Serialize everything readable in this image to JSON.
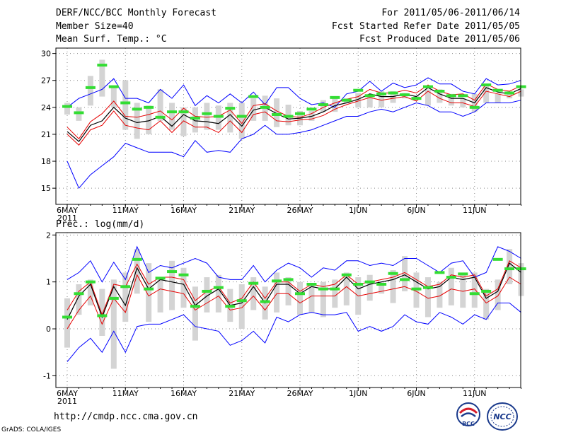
{
  "header": {
    "title": "DERF/NCC/BCC Monthly Forecast",
    "member_size": "Member Size=40",
    "variable": "Mean Surf. Temp.: °C",
    "period": "For 2011/05/06-2011/06/14",
    "started": "Fcst Started Refer Date 2011/05/05",
    "produced": "Fcst Produced Date 2011/05/06"
  },
  "footer": {
    "url": "http://cmdp.ncc.cma.gov.cn",
    "credit": "GrADS: COLA/IGES",
    "logo_bcc": "BCC",
    "logo_ncc": "NCC"
  },
  "colors": {
    "ensemble_mean": "#000000",
    "spread_1sd": "#e60000",
    "spread_max_min": "#0000ff",
    "quartile_box": "#d4d4d4",
    "median": "#33dd33",
    "grid": "#888888"
  },
  "chart_data": [
    {
      "type": "line",
      "title": "Mean Surf. Temp.: °C",
      "x_tick_labels": [
        "6MAY",
        "11MAY",
        "16MAY",
        "21MAY",
        "26MAY",
        "1JUN",
        "6JUN",
        "11JUN"
      ],
      "x_tick_days": [
        1,
        6,
        11,
        16,
        21,
        26,
        31,
        36
      ],
      "year_label": "2011",
      "ylim": [
        13.2,
        30.6
      ],
      "y_ticks": [
        15,
        18,
        21,
        24,
        27,
        30
      ],
      "days": 40,
      "series": {
        "max": [
          24.0,
          25.0,
          25.5,
          26.0,
          27.2,
          25.0,
          25.0,
          24.5,
          26.0,
          25.0,
          26.5,
          24.2,
          25.3,
          24.5,
          25.5,
          24.5,
          25.7,
          24.3,
          26.2,
          26.2,
          25.0,
          24.3,
          24.5,
          24.0,
          25.5,
          25.8,
          26.9,
          25.8,
          26.7,
          26.2,
          26.5,
          27.3,
          26.6,
          26.6,
          25.8,
          25.5,
          27.2,
          26.5,
          26.6,
          27.0
        ],
        "upper_sd": [
          21.8,
          20.5,
          22.4,
          23.3,
          24.7,
          23.0,
          22.9,
          23.2,
          23.6,
          22.6,
          23.9,
          23.0,
          22.9,
          23.0,
          23.7,
          22.2,
          24.2,
          24.4,
          23.6,
          23.0,
          22.9,
          23.3,
          24.0,
          24.5,
          24.9,
          25.2,
          26.0,
          25.6,
          25.6,
          25.9,
          25.6,
          26.5,
          25.8,
          25.4,
          25.5,
          24.8,
          26.6,
          26.0,
          25.8,
          26.4
        ],
        "mean": [
          21.3,
          20.2,
          22.0,
          22.5,
          24.0,
          22.8,
          22.3,
          22.5,
          23.0,
          21.9,
          23.2,
          22.5,
          22.4,
          22.2,
          23.2,
          21.9,
          23.7,
          24.0,
          23.3,
          22.7,
          22.8,
          23.0,
          23.5,
          24.2,
          24.5,
          24.9,
          25.5,
          25.2,
          25.2,
          25.5,
          25.2,
          26.2,
          25.5,
          25.0,
          25.0,
          24.5,
          26.2,
          25.7,
          25.5,
          26.1
        ],
        "lower_sd": [
          21.0,
          19.8,
          21.5,
          22.0,
          23.6,
          22.0,
          21.7,
          21.5,
          22.5,
          21.2,
          22.5,
          21.8,
          21.8,
          21.2,
          22.5,
          21.2,
          23.2,
          23.5,
          22.5,
          22.4,
          22.6,
          22.7,
          23.1,
          23.8,
          24.3,
          24.7,
          25.1,
          24.8,
          25.0,
          25.2,
          24.7,
          25.8,
          25.0,
          24.5,
          24.5,
          24.1,
          25.8,
          25.5,
          25.2,
          25.8
        ],
        "min": [
          18.0,
          15.0,
          16.5,
          17.5,
          18.5,
          20.0,
          19.5,
          19.0,
          19.0,
          19.0,
          18.5,
          20.3,
          19.0,
          19.2,
          19.0,
          20.5,
          21.0,
          22.0,
          21.0,
          21.0,
          21.2,
          21.5,
          22.0,
          22.5,
          23.0,
          23.0,
          23.5,
          23.8,
          23.5,
          24.0,
          24.5,
          24.2,
          23.5,
          23.5,
          23.0,
          23.5,
          24.5,
          24.5,
          24.5,
          24.8
        ],
        "q_upper": [
          24.5,
          24.0,
          27.5,
          29.3,
          26.3,
          27.0,
          24.5,
          24.2,
          26.0,
          24.5,
          24.0,
          24.0,
          24.5,
          24.2,
          24.5,
          24.5,
          25.0,
          25.3,
          25.0,
          24.3,
          23.6,
          23.6,
          24.8,
          25.0,
          25.0,
          25.6,
          25.5,
          25.8,
          25.8,
          25.6,
          25.3,
          26.0,
          26.0,
          25.5,
          25.0,
          25.5,
          26.5,
          25.5,
          25.8,
          26.0
        ],
        "q_lower": [
          23.2,
          22.5,
          24.2,
          25.2,
          24.0,
          21.5,
          20.5,
          21.0,
          22.5,
          21.5,
          20.8,
          21.2,
          21.5,
          21.5,
          21.2,
          20.5,
          22.5,
          22.5,
          21.8,
          22.0,
          22.0,
          22.5,
          23.5,
          23.5,
          24.5,
          24.0,
          24.0,
          24.0,
          24.5,
          25.0,
          24.8,
          24.2,
          24.5,
          24.2,
          24.0,
          23.5,
          24.5,
          24.5,
          25.0,
          25.2
        ],
        "median": [
          24.1,
          23.4,
          26.2,
          28.7,
          26.3,
          24.5,
          23.8,
          24.0,
          22.9,
          23.5,
          23.5,
          22.8,
          23.3,
          23.0,
          23.9,
          23.0,
          25.2,
          24.0,
          23.2,
          23.0,
          23.3,
          23.8,
          24.3,
          25.1,
          24.8,
          25.9,
          25.3,
          25.5,
          25.6,
          25.4,
          25.0,
          26.3,
          25.8,
          25.3,
          25.3,
          24.0,
          26.5,
          25.9,
          25.6,
          26.3
        ]
      }
    },
    {
      "type": "line",
      "title": "Prec.: log(mm/d)",
      "x_tick_labels": [
        "6MAY",
        "11MAY",
        "16MAY",
        "21MAY",
        "26MAY",
        "1JUN",
        "6JUN",
        "11JUN"
      ],
      "x_tick_days": [
        1,
        6,
        11,
        16,
        21,
        26,
        31,
        36
      ],
      "year_label": "2011",
      "ylim": [
        -1.25,
        2.05
      ],
      "y_ticks": [
        -1,
        0,
        1,
        2
      ],
      "days": 40,
      "series": {
        "max": [
          1.05,
          1.2,
          1.45,
          1.0,
          1.42,
          1.05,
          1.75,
          1.2,
          1.35,
          1.3,
          1.4,
          1.5,
          1.4,
          1.1,
          1.05,
          1.05,
          1.35,
          1.0,
          1.25,
          1.4,
          1.3,
          1.1,
          1.3,
          1.25,
          1.45,
          1.45,
          1.35,
          1.4,
          1.35,
          1.5,
          1.5,
          1.35,
          1.2,
          1.4,
          1.45,
          1.1,
          1.2,
          1.75,
          1.65,
          1.5
        ],
        "upper_sd": [
          0.4,
          0.8,
          1.0,
          0.3,
          0.95,
          0.9,
          1.38,
          0.95,
          1.1,
          1.1,
          1.05,
          0.6,
          0.8,
          0.9,
          0.55,
          0.65,
          1.0,
          0.65,
          1.0,
          1.0,
          0.8,
          0.95,
          0.9,
          0.95,
          1.15,
          0.95,
          1.0,
          1.05,
          1.1,
          1.2,
          1.05,
          0.9,
          0.95,
          1.15,
          1.1,
          1.15,
          0.7,
          0.85,
          1.45,
          1.3
        ],
        "mean": [
          0.2,
          0.7,
          0.95,
          0.25,
          0.9,
          0.5,
          1.3,
          0.85,
          1.05,
          1.0,
          0.95,
          0.5,
          0.7,
          0.85,
          0.5,
          0.55,
          0.9,
          0.55,
          0.95,
          0.95,
          0.75,
          0.9,
          0.85,
          0.85,
          1.1,
          0.85,
          0.95,
          1.0,
          1.05,
          1.15,
          1.0,
          0.85,
          0.9,
          1.1,
          1.05,
          1.1,
          0.65,
          0.8,
          1.4,
          1.2
        ],
        "lower_sd": [
          0.0,
          0.4,
          0.7,
          0.1,
          0.65,
          0.35,
          1.15,
          0.7,
          0.85,
          0.8,
          0.75,
          0.4,
          0.55,
          0.7,
          0.4,
          0.45,
          0.7,
          0.4,
          0.75,
          0.75,
          0.55,
          0.7,
          0.7,
          0.7,
          0.9,
          0.7,
          0.75,
          0.8,
          0.85,
          0.9,
          0.8,
          0.65,
          0.7,
          0.85,
          0.8,
          0.85,
          0.55,
          0.7,
          1.1,
          0.95
        ],
        "min": [
          -0.7,
          -0.4,
          -0.2,
          -0.5,
          -0.05,
          -0.5,
          0.05,
          0.1,
          0.1,
          0.2,
          0.3,
          0.05,
          0.0,
          -0.05,
          -0.35,
          -0.25,
          -0.05,
          -0.3,
          0.25,
          0.15,
          0.3,
          0.35,
          0.3,
          0.3,
          0.35,
          -0.05,
          0.05,
          -0.05,
          0.05,
          0.3,
          0.15,
          0.1,
          0.35,
          0.25,
          0.1,
          0.3,
          0.2,
          0.55,
          0.55,
          0.35
        ],
        "q_upper": [
          0.65,
          0.95,
          1.05,
          0.85,
          1.05,
          1.2,
          1.7,
          1.4,
          1.1,
          1.45,
          1.3,
          0.9,
          1.1,
          1.15,
          0.85,
          0.95,
          1.1,
          0.9,
          1.2,
          1.1,
          1.0,
          0.95,
          1.0,
          1.05,
          1.2,
          1.1,
          1.15,
          1.0,
          1.25,
          1.55,
          1.2,
          1.1,
          1.0,
          1.3,
          1.15,
          1.2,
          0.85,
          1.05,
          1.7,
          1.4
        ],
        "q_lower": [
          -0.4,
          0.3,
          0.5,
          -0.15,
          -0.85,
          0.15,
          0.75,
          0.15,
          0.35,
          0.4,
          0.45,
          -0.25,
          0.35,
          0.35,
          0.15,
          0.0,
          0.4,
          0.2,
          0.35,
          0.5,
          0.3,
          0.35,
          0.25,
          0.45,
          0.5,
          0.3,
          0.6,
          0.75,
          0.55,
          0.8,
          0.45,
          0.25,
          0.45,
          0.5,
          0.45,
          0.45,
          0.2,
          0.4,
          0.95,
          0.7
        ],
        "median": [
          0.25,
          0.75,
          1.0,
          0.28,
          0.65,
          0.9,
          1.48,
          0.85,
          1.08,
          1.22,
          1.15,
          0.48,
          0.8,
          0.88,
          0.48,
          0.6,
          0.97,
          0.58,
          1.02,
          1.05,
          0.75,
          0.95,
          0.85,
          0.85,
          1.15,
          0.95,
          1.0,
          0.95,
          1.18,
          1.05,
          0.85,
          0.88,
          1.2,
          1.1,
          1.17,
          0.75,
          0.8,
          1.48,
          1.28,
          1.28
        ]
      }
    }
  ]
}
